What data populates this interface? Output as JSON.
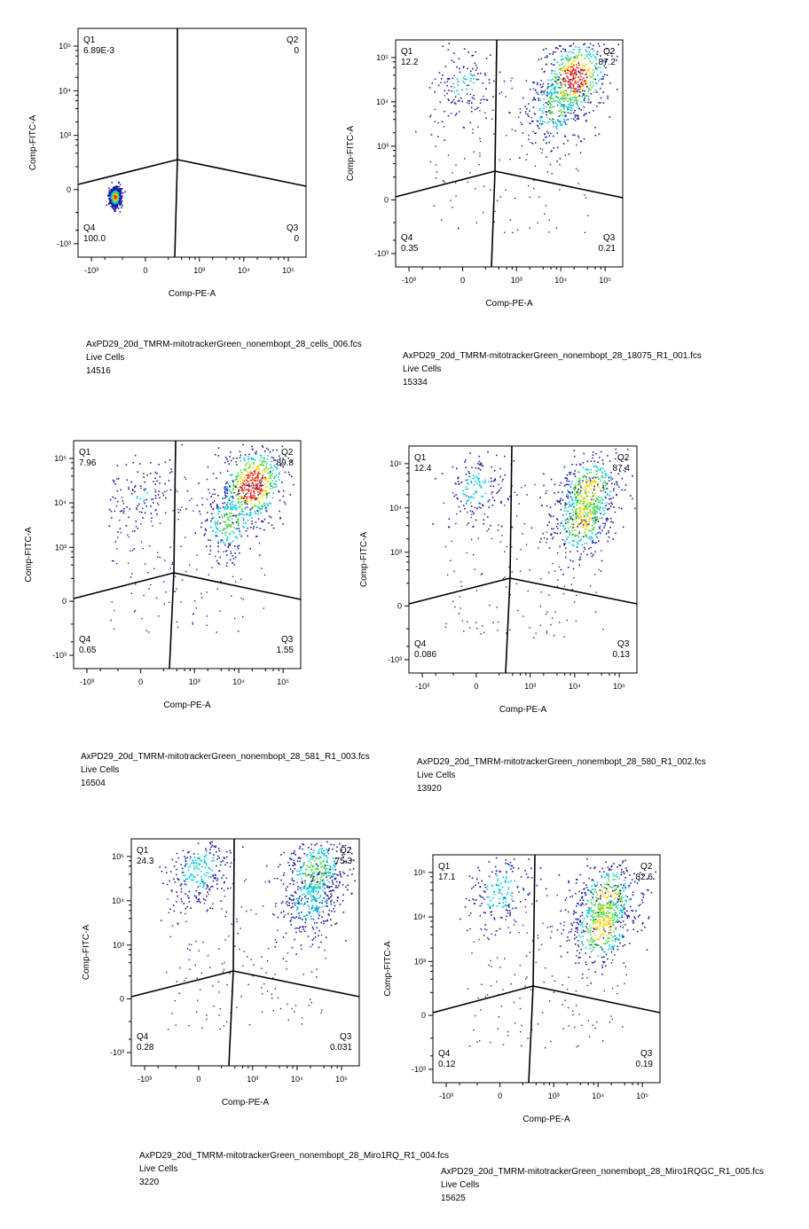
{
  "chart_data": [
    {
      "type": "scatter",
      "title": "AxPD29_20d_TMRM-mitotrackerGreen_nonembopt_28_cells_006.fcs",
      "gate": "Live Cells",
      "event_count": "14516",
      "xlabel": "Comp-PE-A",
      "ylabel": "Comp-FITC-A",
      "x_ticks": [
        "-10³",
        "0",
        "10³",
        "10⁴",
        "10⁵"
      ],
      "y_ticks": [
        "10⁵",
        "10⁴",
        "10³",
        "0",
        "-10³"
      ],
      "quadrants": [
        {
          "name": "Q1",
          "value": "6.89E-3"
        },
        {
          "name": "Q2",
          "value": "0"
        },
        {
          "name": "Q3",
          "value": "0"
        },
        {
          "name": "Q4",
          "value": "100.0"
        }
      ],
      "populations": [
        {
          "name": "double-negative cluster",
          "x_center": -300,
          "y_center": -60,
          "relative_size": 1.0
        }
      ]
    },
    {
      "type": "scatter",
      "title": "AxPD29_20d_TMRM-mitotrackerGreen_nonembopt_28_18075_R1_001.fcs",
      "gate": "Live Cells",
      "event_count": "15334",
      "xlabel": "Comp-PE-A",
      "ylabel": "Comp-FITC-A",
      "x_ticks": [
        "-10³",
        "0",
        "10³",
        "10⁴",
        "10⁵"
      ],
      "y_ticks": [
        "10⁵",
        "10⁴",
        "10³",
        "0",
        "-10³"
      ],
      "quadrants": [
        {
          "name": "Q1",
          "value": "12.2"
        },
        {
          "name": "Q2",
          "value": "87.2"
        },
        {
          "name": "Q3",
          "value": "0.21"
        },
        {
          "name": "Q4",
          "value": "0.35"
        }
      ],
      "populations": [
        {
          "name": "Q2 bright cluster",
          "x_center": 20000,
          "y_center": 35000,
          "relative_size": 1.0
        },
        {
          "name": "Q2 lower tail",
          "x_center": 8000,
          "y_center": 8000,
          "relative_size": 0.5
        },
        {
          "name": "Q1 cluster",
          "x_center": 0,
          "y_center": 25000,
          "relative_size": 0.25
        }
      ]
    },
    {
      "type": "scatter",
      "title": "AxPD29_20d_TMRM-mitotrackerGreen_nonembopt_28_581_R1_003.fcs",
      "gate": "Live Cells",
      "event_count": "16504",
      "xlabel": "Comp-PE-A",
      "ylabel": "Comp-FITC-A",
      "x_ticks": [
        "-10³",
        "0",
        "10³",
        "10⁴",
        "10⁵"
      ],
      "y_ticks": [
        "10⁵",
        "10⁴",
        "10³",
        "0",
        "-10³"
      ],
      "quadrants": [
        {
          "name": "Q1",
          "value": "7.96"
        },
        {
          "name": "Q2",
          "value": "89.8"
        },
        {
          "name": "Q3",
          "value": "1.55"
        },
        {
          "name": "Q4",
          "value": "0.65"
        }
      ],
      "populations": [
        {
          "name": "Q2 bright cluster",
          "x_center": 20000,
          "y_center": 25000,
          "relative_size": 1.0
        },
        {
          "name": "Q2 lower tail",
          "x_center": 6000,
          "y_center": 4000,
          "relative_size": 0.45
        },
        {
          "name": "Q1 cluster",
          "x_center": 0,
          "y_center": 15000,
          "relative_size": 0.2
        }
      ]
    },
    {
      "type": "scatter",
      "title": "AxPD29_20d_TMRM-mitotrackerGreen_nonembopt_28_580_R1_002.fcs",
      "gate": "Live Cells",
      "event_count": "13920",
      "xlabel": "Comp-PE-A",
      "ylabel": "Comp-FITC-A",
      "x_ticks": [
        "-10³",
        "0",
        "10³",
        "10⁴",
        "10⁵"
      ],
      "y_ticks": [
        "10⁵",
        "10⁴",
        "10³",
        "0",
        "-10³"
      ],
      "quadrants": [
        {
          "name": "Q1",
          "value": "12.4"
        },
        {
          "name": "Q2",
          "value": "87.4"
        },
        {
          "name": "Q3",
          "value": "0.13"
        },
        {
          "name": "Q4",
          "value": "0.086"
        }
      ],
      "populations": [
        {
          "name": "Q2 upper cluster",
          "x_center": 20000,
          "y_center": 25000,
          "relative_size": 0.7
        },
        {
          "name": "Q2 lower cluster",
          "x_center": 15000,
          "y_center": 6000,
          "relative_size": 0.7
        },
        {
          "name": "Q1 cluster",
          "x_center": 0,
          "y_center": 30000,
          "relative_size": 0.3
        }
      ]
    },
    {
      "type": "scatter",
      "title": "AxPD29_20d_TMRM-mitotrackerGreen_nonembopt_28_Miro1RQ_R1_004.fcs",
      "gate": "Live Cells",
      "event_count": "3220",
      "xlabel": "Comp-PE-A",
      "ylabel": "Comp-FITC-A",
      "x_ticks": [
        "-10³",
        "0",
        "10³",
        "10⁴",
        "10⁵"
      ],
      "y_ticks": [
        "10⁵",
        "10⁴",
        "10³",
        "0",
        "-10³"
      ],
      "quadrants": [
        {
          "name": "Q1",
          "value": "24.3"
        },
        {
          "name": "Q2",
          "value": "75.3"
        },
        {
          "name": "Q3",
          "value": "0.031"
        },
        {
          "name": "Q4",
          "value": "0.28"
        }
      ],
      "populations": [
        {
          "name": "Q2 upper cluster",
          "x_center": 25000,
          "y_center": 45000,
          "relative_size": 0.5
        },
        {
          "name": "Q2 lower cluster",
          "x_center": 20000,
          "y_center": 10000,
          "relative_size": 0.35
        },
        {
          "name": "Q1 cluster",
          "x_center": 0,
          "y_center": 50000,
          "relative_size": 0.35
        }
      ]
    },
    {
      "type": "scatter",
      "title": "AxPD29_20d_TMRM-mitotrackerGreen_nonembopt_28_Miro1RQGC_R1_005.fcs",
      "gate": "Live Cells",
      "event_count": "15625",
      "xlabel": "Comp-PE-A",
      "ylabel": "Comp-FITC-A",
      "x_ticks": [
        "-10³",
        "0",
        "10³",
        "10⁴",
        "10⁵"
      ],
      "y_ticks": [
        "10⁵",
        "10⁴",
        "10³",
        "0",
        "-10³"
      ],
      "quadrants": [
        {
          "name": "Q1",
          "value": "17.1"
        },
        {
          "name": "Q2",
          "value": "82.6"
        },
        {
          "name": "Q3",
          "value": "0.19"
        },
        {
          "name": "Q4",
          "value": "0.12"
        }
      ],
      "populations": [
        {
          "name": "Q2 upper cluster",
          "x_center": 15000,
          "y_center": 25000,
          "relative_size": 0.7
        },
        {
          "name": "Q2 lower cluster",
          "x_center": 12000,
          "y_center": 6000,
          "relative_size": 0.7
        },
        {
          "name": "Q1 cluster",
          "x_center": 0,
          "y_center": 40000,
          "relative_size": 0.35
        }
      ]
    }
  ],
  "colors": {
    "axis": "#000000",
    "density_low": "#1a1aa6",
    "density_mid": "#00c8e0",
    "density_midhigh": "#3ddc3d",
    "density_high": "#ffd000",
    "density_peak": "#ff2000"
  }
}
